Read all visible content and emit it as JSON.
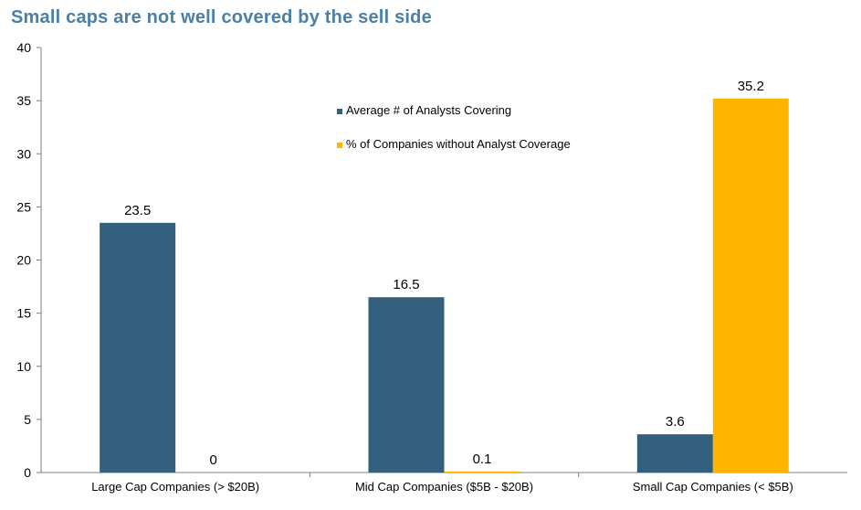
{
  "chart_data": {
    "type": "bar",
    "title": "Small caps are not well covered by the sell side",
    "categories": [
      "Large Cap Companies (> $20B)",
      "Mid Cap Companies ($5B - $20B)",
      "Small Cap Companies (< $5B)"
    ],
    "series": [
      {
        "name": "Average # of Analysts Covering",
        "values": [
          23.5,
          16.5,
          3.6
        ],
        "labels": [
          "23.5",
          "16.5",
          "3.6"
        ],
        "color": "#345f7d"
      },
      {
        "name": "% of Companies without Analyst Coverage",
        "values": [
          0,
          0.1,
          35.2
        ],
        "labels": [
          "0",
          "0.1",
          "35.2"
        ],
        "color": "#ffb400"
      }
    ],
    "ylim": [
      0,
      40
    ],
    "yticks": [
      "0",
      "5",
      "10",
      "15",
      "20",
      "25",
      "30",
      "35",
      "40"
    ],
    "grid": false,
    "legend_position": "top-center"
  },
  "colors": {
    "title": "#4a7fa8",
    "axis": "#7f7f7f"
  }
}
